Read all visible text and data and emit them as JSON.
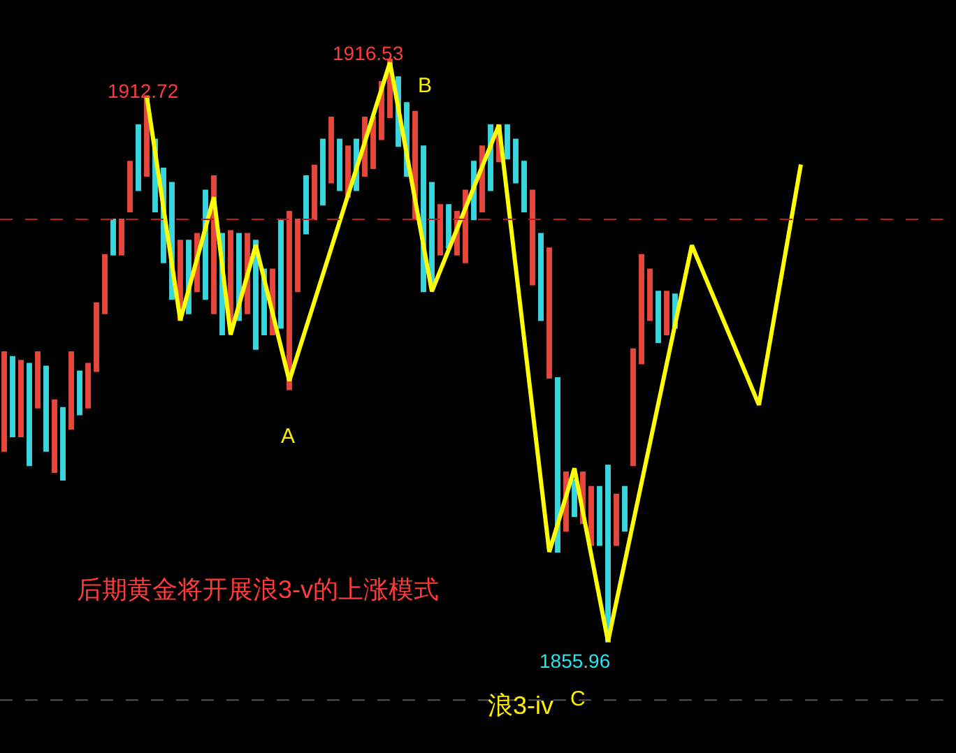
{
  "chart_data": {
    "type": "candlestick",
    "tick_labels": false,
    "grid": false,
    "legend": false,
    "categories": [
      null,
      null,
      null,
      null,
      null,
      null,
      null,
      null,
      null,
      null,
      null,
      null,
      null,
      null,
      null,
      null,
      null,
      null,
      null,
      null,
      null,
      null,
      null,
      null,
      null,
      null,
      null,
      null,
      null,
      null,
      null,
      null,
      null,
      null,
      null,
      null,
      null,
      null,
      null,
      null,
      null,
      null,
      null,
      null,
      null,
      null,
      null,
      null,
      null,
      null,
      null,
      null,
      null,
      null,
      null,
      null,
      null,
      null,
      null,
      null,
      null,
      null,
      null,
      null,
      null,
      null,
      null,
      null,
      null,
      null,
      null,
      null,
      null,
      null,
      null,
      null,
      null,
      null,
      null,
      null,
      null,
      null,
      null,
      null,
      null,
      null,
      null,
      null,
      null,
      null,
      null,
      null,
      null,
      null,
      null,
      null
    ],
    "ylim": [
      1844.4,
      1922.7
    ],
    "ohlc": [
      [
        1875.8,
        1886.1,
        1875.8,
        1886.1
      ],
      [
        1885.6,
        1885.6,
        1877.3,
        1877.3
      ],
      [
        1877.3,
        1885.2,
        1877.3,
        1885.2
      ],
      [
        1884.9,
        1884.9,
        1874.3,
        1874.3
      ],
      [
        1880.3,
        1886.1,
        1880.3,
        1886.1
      ],
      [
        1884.6,
        1884.6,
        1875.8,
        1875.8
      ],
      [
        1873.6,
        1881.1,
        1873.6,
        1881.1
      ],
      [
        1880.3,
        1880.3,
        1872.8,
        1872.8
      ],
      [
        1878.1,
        1886.1,
        1878.1,
        1886.1
      ],
      [
        1884.1,
        1884.1,
        1879.6,
        1879.6
      ],
      [
        1880.3,
        1884.9,
        1880.3,
        1884.9
      ],
      [
        1884.1,
        1891.2,
        1884.1,
        1891.2
      ],
      [
        1890.1,
        1896.2,
        1890.1,
        1896.2
      ],
      [
        1899.9,
        1899.9,
        1896.2,
        1896.2
      ],
      [
        1896.2,
        1899.9,
        1896.2,
        1899.9
      ],
      [
        1900.7,
        1905.9,
        1900.7,
        1905.9
      ],
      [
        1909.7,
        1909.7,
        1902.9,
        1902.9
      ],
      [
        1904.4,
        1912.72,
        1904.4,
        1912.72
      ],
      [
        1908.2,
        1908.2,
        1900.7,
        1900.7
      ],
      [
        1905.2,
        1905.2,
        1895.4,
        1895.4
      ],
      [
        1903.7,
        1903.7,
        1891.6,
        1891.6
      ],
      [
        1889.4,
        1897.7,
        1889.4,
        1897.7
      ],
      [
        1897.7,
        1897.7,
        1890.1,
        1890.1
      ],
      [
        1892.4,
        1898.4,
        1892.4,
        1898.4
      ],
      [
        1902.9,
        1902.9,
        1891.6,
        1891.6
      ],
      [
        1890.1,
        1904.4,
        1890.1,
        1904.4
      ],
      [
        1898.4,
        1898.4,
        1887.9,
        1887.9
      ],
      [
        1888.6,
        1898.7,
        1888.6,
        1898.7
      ],
      [
        1898.4,
        1898.4,
        1889.4,
        1889.4
      ],
      [
        1890.1,
        1898.4,
        1890.1,
        1898.4
      ],
      [
        1897.7,
        1897.7,
        1886.4,
        1886.4
      ],
      [
        1894.7,
        1894.7,
        1887.9,
        1887.9
      ],
      [
        1887.9,
        1894.7,
        1887.9,
        1894.7
      ],
      [
        1899.9,
        1899.9,
        1888.6,
        1888.6
      ],
      [
        1882.2,
        1900.7,
        1882.2,
        1900.7
      ],
      [
        1892.4,
        1899.9,
        1892.4,
        1899.9
      ],
      [
        1904.4,
        1904.4,
        1898.4,
        1898.4
      ],
      [
        1899.9,
        1905.5,
        1899.9,
        1905.5
      ],
      [
        1908.2,
        1908.2,
        1901.4,
        1901.4
      ],
      [
        1903.7,
        1910.5,
        1903.7,
        1910.5
      ],
      [
        1908.2,
        1908.2,
        1902.9,
        1902.9
      ],
      [
        1902.2,
        1907.5,
        1902.2,
        1907.5
      ],
      [
        1908.2,
        1908.2,
        1902.9,
        1902.9
      ],
      [
        1904.4,
        1910.5,
        1904.4,
        1910.5
      ],
      [
        1905.2,
        1910.5,
        1905.2,
        1910.5
      ],
      [
        1908.2,
        1914.2,
        1908.2,
        1914.2
      ],
      [
        1910.5,
        1916.53,
        1910.5,
        1916.53
      ],
      [
        1914.7,
        1914.7,
        1907.5,
        1907.5
      ],
      [
        1912.0,
        1912.0,
        1904.4,
        1904.4
      ],
      [
        1899.9,
        1911.1,
        1899.9,
        1911.1
      ],
      [
        1907.5,
        1907.5,
        1892.4,
        1892.4
      ],
      [
        1903.7,
        1903.7,
        1893.1,
        1893.1
      ],
      [
        1896.2,
        1901.4,
        1896.2,
        1901.4
      ],
      [
        1901.4,
        1901.4,
        1896.9,
        1896.9
      ],
      [
        1896.2,
        1900.7,
        1896.2,
        1900.7
      ],
      [
        1895.4,
        1902.9,
        1895.4,
        1902.9
      ],
      [
        1905.9,
        1905.9,
        1899.9,
        1899.9
      ],
      [
        1900.7,
        1907.5,
        1900.7,
        1907.5
      ],
      [
        1909.7,
        1909.7,
        1902.9,
        1902.9
      ],
      [
        1905.9,
        1909.7,
        1905.9,
        1909.7
      ],
      [
        1909.7,
        1909.7,
        1906.2,
        1906.2
      ],
      [
        1908.2,
        1908.2,
        1903.7,
        1903.7
      ],
      [
        1905.9,
        1905.9,
        1900.7,
        1900.7
      ],
      [
        1893.1,
        1902.9,
        1893.1,
        1902.9
      ],
      [
        1898.4,
        1898.4,
        1889.4,
        1889.4
      ],
      [
        1883.4,
        1896.9,
        1883.4,
        1896.9
      ],
      [
        1883.4,
        1883.4,
        1865.3,
        1865.3
      ],
      [
        1867.5,
        1873.6,
        1867.5,
        1873.6
      ],
      [
        1872.8,
        1872.8,
        1869.0,
        1869.0
      ],
      [
        1868.3,
        1873.6,
        1868.3,
        1873.6
      ],
      [
        1866.0,
        1872.1,
        1866.0,
        1872.1
      ],
      [
        1872.1,
        1872.1,
        1866.0,
        1866.0
      ],
      [
        1874.3,
        1874.3,
        1855.96,
        1855.96
      ],
      [
        1866.0,
        1871.3,
        1866.0,
        1871.3
      ],
      [
        1872.1,
        1872.1,
        1867.5,
        1867.5
      ],
      [
        1874.3,
        1886.4,
        1874.3,
        1886.4
      ],
      [
        1884.9,
        1896.2,
        1884.9,
        1896.2
      ],
      [
        1889.4,
        1894.7,
        1889.4,
        1894.7
      ],
      [
        1892.4,
        1892.4,
        1887.1,
        1887.1
      ],
      [
        1887.9,
        1892.4,
        1887.9,
        1892.4
      ],
      [
        1892.1,
        1892.1,
        1888.6,
        1888.6
      ],
      null,
      null,
      null,
      null,
      null,
      null,
      null,
      null,
      null,
      null,
      null,
      null,
      null,
      null,
      null
    ],
    "colors": [
      "#e8483c",
      "#3ad6e0",
      "#e8483c",
      "#3ad6e0",
      "#e8483c",
      "#3ad6e0",
      "#e8483c",
      "#3ad6e0",
      "#e8483c",
      "#3ad6e0",
      "#e8483c",
      "#e8483c",
      "#e8483c",
      "#3ad6e0",
      "#e8483c",
      "#e8483c",
      "#3ad6e0",
      "#e8483c",
      "#3ad6e0",
      "#3ad6e0",
      "#3ad6e0",
      "#e8483c",
      "#3ad6e0",
      "#e8483c",
      "#3ad6e0",
      "#e8483c",
      "#3ad6e0",
      "#e8483c",
      "#3ad6e0",
      "#e8483c",
      "#3ad6e0",
      "#3ad6e0",
      "#e8483c",
      "#3ad6e0",
      "#e8483c",
      "#e8483c",
      "#3ad6e0",
      "#e8483c",
      "#3ad6e0",
      "#e8483c",
      "#3ad6e0",
      "#e8483c",
      "#3ad6e0",
      "#e8483c",
      "#e8483c",
      "#e8483c",
      "#e8483c",
      "#3ad6e0",
      "#3ad6e0",
      "#e8483c",
      "#3ad6e0",
      "#3ad6e0",
      "#e8483c",
      "#3ad6e0",
      "#e8483c",
      "#e8483c",
      "#3ad6e0",
      "#e8483c",
      "#3ad6e0",
      "#e8483c",
      "#3ad6e0",
      "#3ad6e0",
      "#3ad6e0",
      "#e8483c",
      "#3ad6e0",
      "#e8483c",
      "#3ad6e0",
      "#e8483c",
      "#3ad6e0",
      "#e8483c",
      "#e8483c",
      "#3ad6e0",
      "#3ad6e0",
      "#e8483c",
      "#3ad6e0",
      "#e8483c",
      "#e8483c",
      "#e8483c",
      "#3ad6e0",
      "#e8483c",
      "#3ad6e0",
      null,
      null,
      null,
      null,
      null,
      null,
      null,
      null,
      null,
      null,
      null,
      null,
      null,
      null,
      null
    ],
    "series": [
      {
        "type": "line",
        "color": "#ffff00",
        "values": [
          null,
          null,
          null,
          null,
          null,
          null,
          null,
          null,
          null,
          null,
          null,
          null,
          null,
          null,
          null,
          null,
          null,
          1912.7,
          null,
          null,
          null,
          1889.4,
          null,
          null,
          null,
          1902.2,
          null,
          1887.9,
          null,
          null,
          1897.2,
          null,
          null,
          null,
          1883.1,
          null,
          null,
          null,
          null,
          null,
          null,
          null,
          null,
          null,
          null,
          null,
          1916.2,
          null,
          null,
          null,
          null,
          1892.4,
          null,
          null,
          null,
          null,
          null,
          null,
          null,
          1909.7,
          null,
          null,
          null,
          null,
          null,
          1865.3,
          null,
          null,
          1874.0,
          null,
          null,
          null,
          1856.0,
          null,
          null,
          null,
          null,
          null,
          null,
          null,
          null,
          null,
          1897.2,
          null,
          null,
          null,
          null,
          null,
          null,
          null,
          1880.6,
          null,
          null,
          null,
          null,
          1905.6
        ]
      }
    ],
    "marker": "none",
    "line_style": "solid",
    "ref_lines": [
      {
        "axis": "y",
        "value": 1899.9,
        "color": "#b81c1c",
        "line_style": "dashed"
      },
      {
        "axis": "y",
        "value": 1849.9,
        "color": "#555555",
        "line_style": "dashed"
      }
    ],
    "annotations": [
      "1912.72",
      "1916.53",
      "1855.96",
      "A",
      "B",
      "C",
      "浪3-iv",
      "后期黄金将开展浪3-v的上涨模式"
    ]
  }
}
